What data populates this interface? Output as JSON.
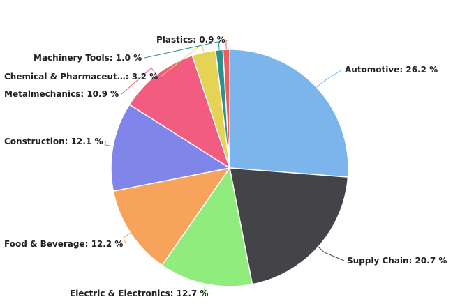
{
  "chart_data": {
    "type": "pie",
    "title": "",
    "unit": "%",
    "legend": "none",
    "slices": [
      {
        "name": "Automotive",
        "value": 26.2,
        "color": "#7cb5ec",
        "label": "Automotive: 26.2 %"
      },
      {
        "name": "Supply Chain",
        "value": 20.7,
        "color": "#434348",
        "label": "Supply Chain: 20.7 %"
      },
      {
        "name": "Electric & Electronics",
        "value": 12.7,
        "color": "#90ed7d",
        "label": "Electric & Electronics: 12.7 %"
      },
      {
        "name": "Food & Beverage",
        "value": 12.2,
        "color": "#f7a35c",
        "label": "Food & Beverage: 12.2 %"
      },
      {
        "name": "Construction",
        "value": 12.1,
        "color": "#8085e9",
        "label": "Construction: 12.1 %"
      },
      {
        "name": "Metalmechanics",
        "value": 10.9,
        "color": "#f15c80",
        "label": "Metalmechanics: 10.9 %"
      },
      {
        "name": "Chemical & Pharmaceut…",
        "value": 3.2,
        "color": "#e4d354",
        "label": "Chemical & Pharmaceut…: 3.2 %"
      },
      {
        "name": "Machinery Tools",
        "value": 1.0,
        "color": "#2b908f",
        "label": "Machinery Tools: 1.0 %"
      },
      {
        "name": "Plastics",
        "value": 0.9,
        "color": "#f45b5b",
        "label": "Plastics: 0.9 %"
      }
    ]
  }
}
